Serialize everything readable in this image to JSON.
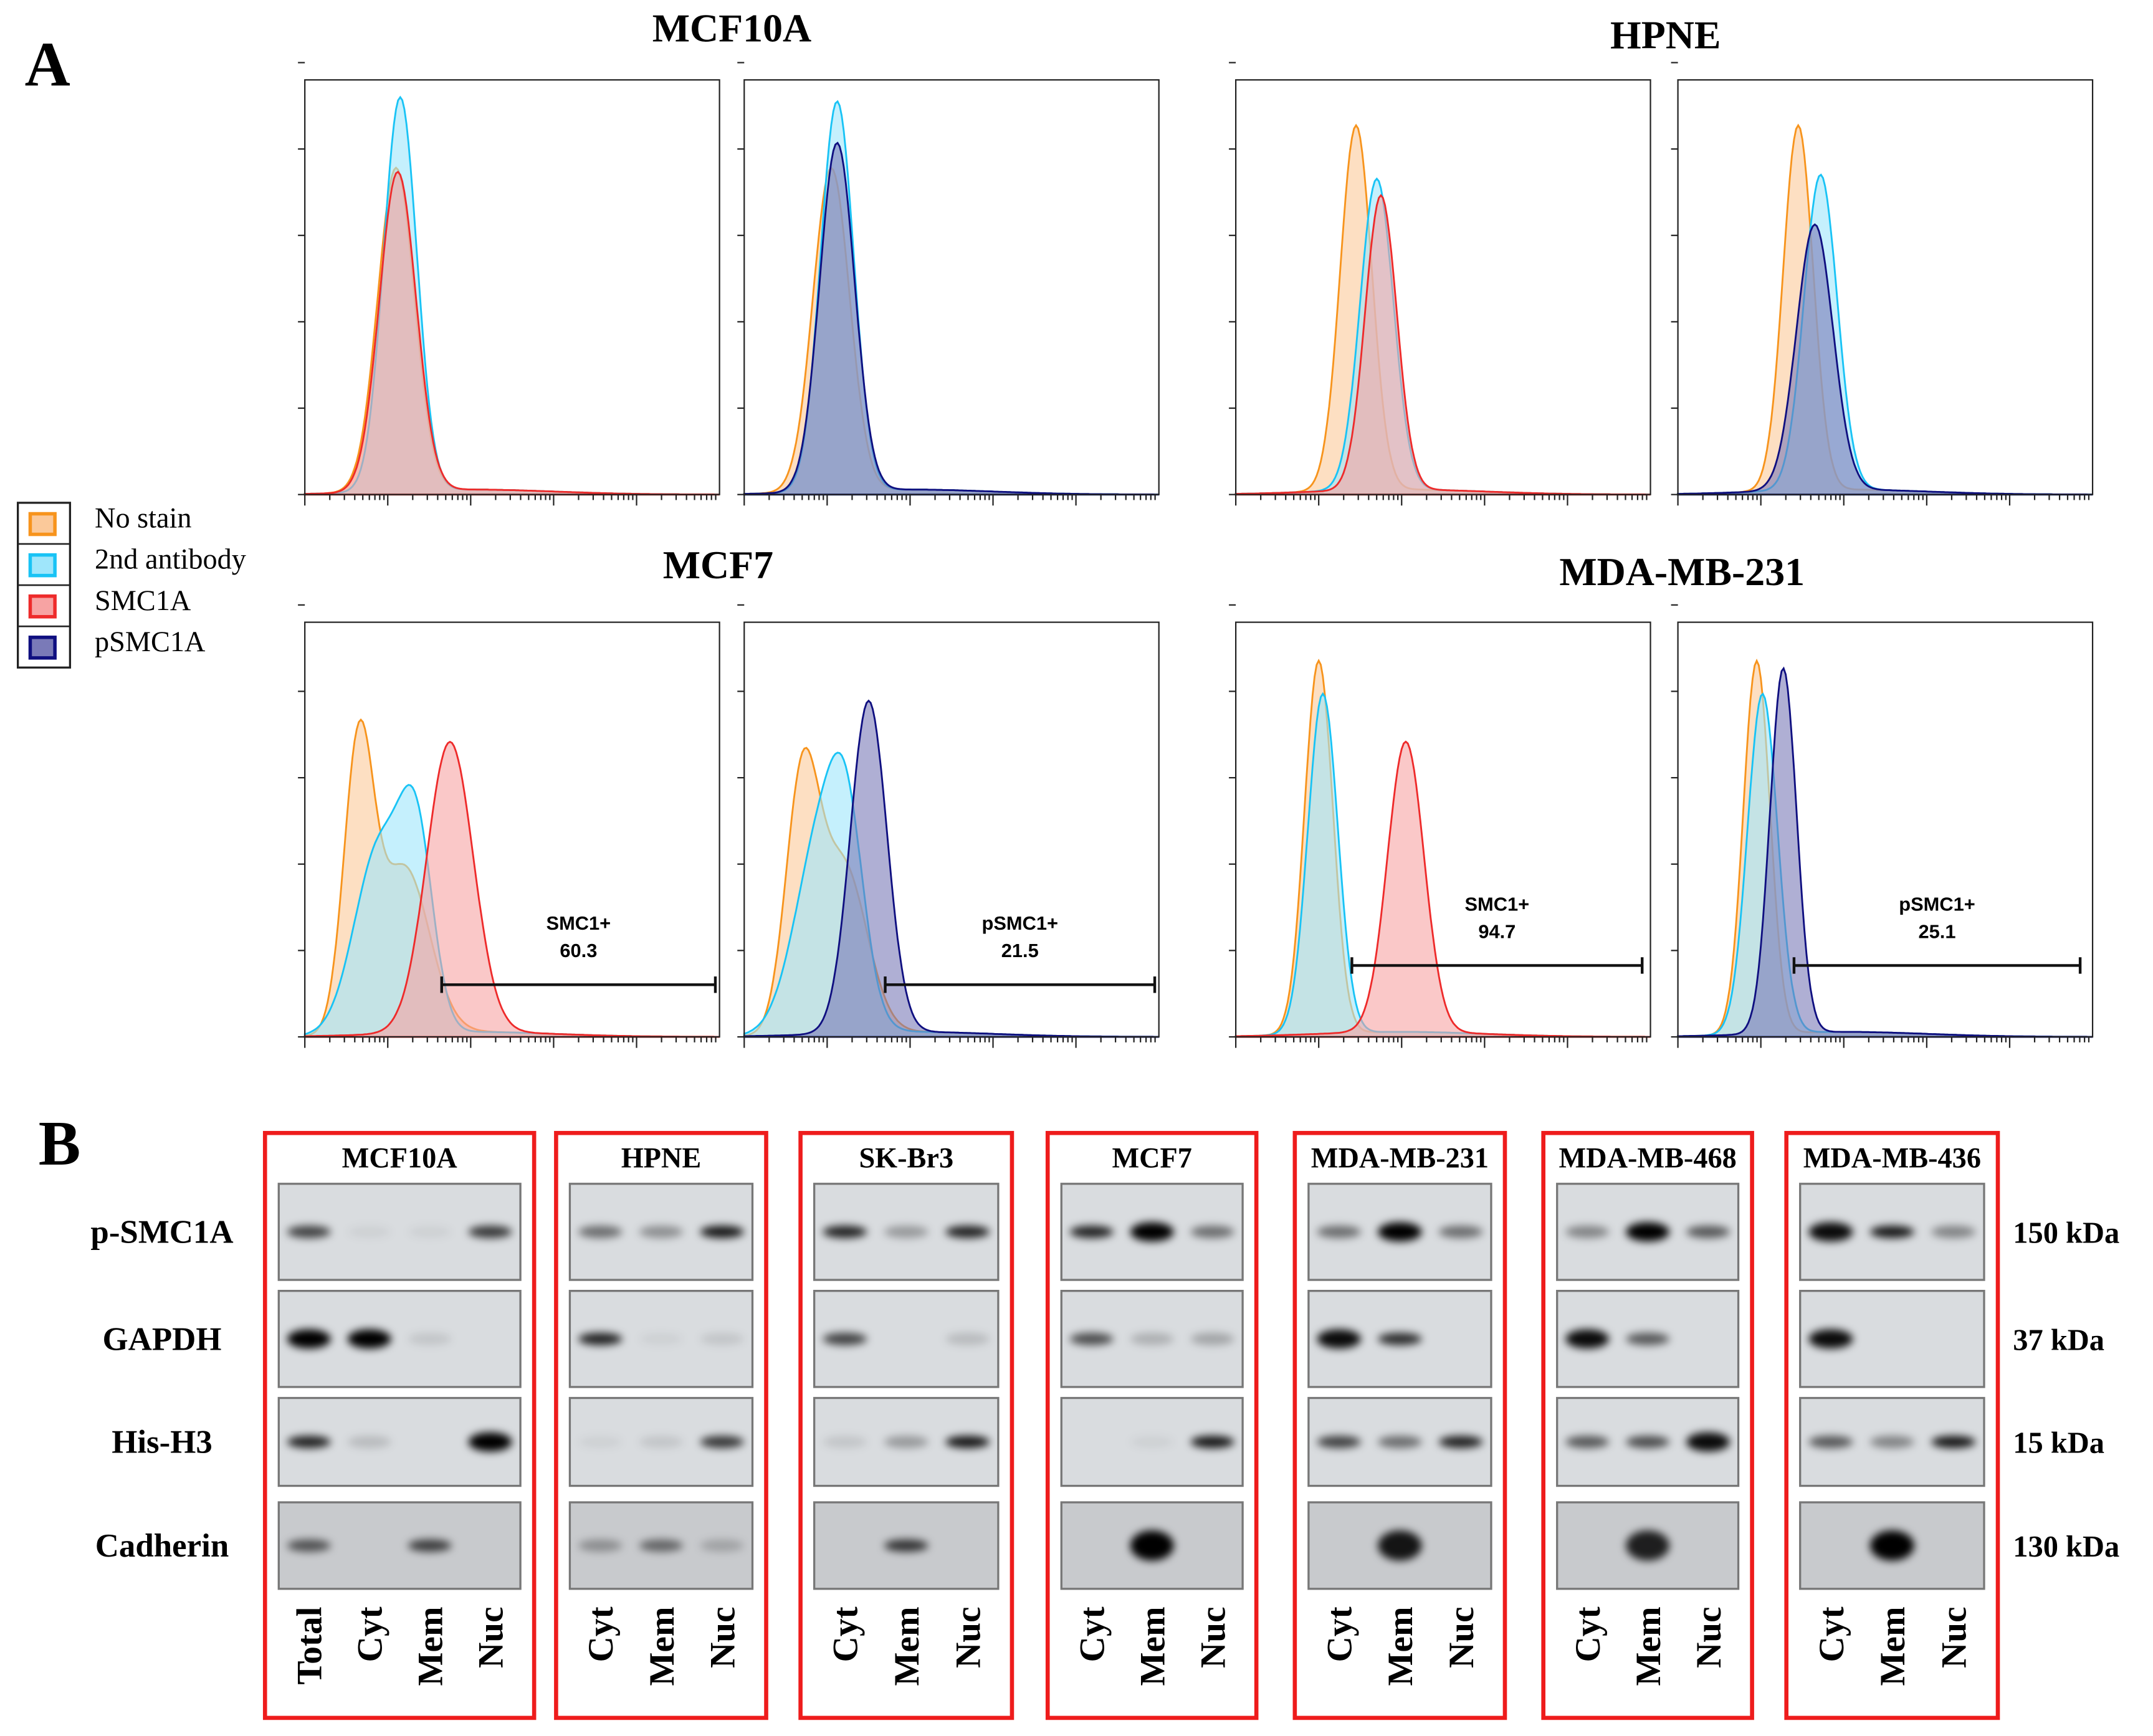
{
  "panel_labels": {
    "a": "A",
    "b": "B"
  },
  "legend": [
    {
      "label": "No stain",
      "stroke": "#f7941d",
      "fill": "#fbc99a"
    },
    {
      "label": "2nd antibody",
      "stroke": "#19c3f5",
      "fill": "#9fe6fb"
    },
    {
      "label": "SMC1A",
      "stroke": "#ee2b2b",
      "fill": "#f7a3a3"
    },
    {
      "label": "pSMC1A",
      "stroke": "#0f0f80",
      "fill": "#7a7ab8"
    }
  ],
  "chart_data": [
    {
      "type": "area",
      "title": "MCF10A",
      "marker": "SMC1A",
      "xlabel": "",
      "ylabel": "",
      "xlim": [
        0,
        5
      ],
      "ylim": [
        0,
        100
      ],
      "series": [
        {
          "name": "No stain",
          "peaks": [
            [
              1.1,
              78,
              0.22
            ]
          ]
        },
        {
          "name": "2nd antibody",
          "peaks": [
            [
              1.15,
              95,
              0.2
            ]
          ]
        },
        {
          "name": "SMC1A",
          "peaks": [
            [
              1.12,
              77,
              0.22
            ]
          ]
        }
      ]
    },
    {
      "type": "area",
      "title": "MCF10A",
      "marker": "pSMC1A",
      "xlim": [
        0,
        5
      ],
      "ylim": [
        0,
        100
      ],
      "series": [
        {
          "name": "No stain",
          "peaks": [
            [
              1.05,
              78,
              0.22
            ]
          ]
        },
        {
          "name": "2nd antibody",
          "peaks": [
            [
              1.12,
              94,
              0.2
            ]
          ]
        },
        {
          "name": "pSMC1A",
          "peaks": [
            [
              1.12,
              84,
              0.21
            ]
          ]
        }
      ]
    },
    {
      "type": "area",
      "title": "HPNE",
      "marker": "SMC1A",
      "xlim": [
        0,
        5
      ],
      "ylim": [
        0,
        100
      ],
      "series": [
        {
          "name": "No stain",
          "peaks": [
            [
              1.45,
              88,
              0.19
            ]
          ]
        },
        {
          "name": "2nd antibody",
          "peaks": [
            [
              1.7,
              75,
              0.2
            ]
          ]
        },
        {
          "name": "SMC1A",
          "peaks": [
            [
              1.75,
              71,
              0.19
            ]
          ]
        }
      ]
    },
    {
      "type": "area",
      "title": "HPNE",
      "marker": "pSMC1A",
      "xlim": [
        0,
        5
      ],
      "ylim": [
        0,
        100
      ],
      "series": [
        {
          "name": "No stain",
          "peaks": [
            [
              1.45,
              88,
              0.18
            ]
          ]
        },
        {
          "name": "2nd antibody",
          "peaks": [
            [
              1.72,
              76,
              0.2
            ]
          ]
        },
        {
          "name": "pSMC1A",
          "peaks": [
            [
              1.65,
              64,
              0.22
            ]
          ]
        }
      ]
    },
    {
      "type": "area",
      "title": "MCF7",
      "marker": "SMC1A",
      "xlim": [
        0,
        5
      ],
      "ylim": [
        0,
        100
      ],
      "gate": {
        "label": "SMC1+",
        "value": "60.3",
        "range": [
          1.65,
          4.95
        ]
      },
      "series": [
        {
          "name": "No stain",
          "peaks": [
            [
              0.65,
              68,
              0.18
            ],
            [
              1.2,
              40,
              0.3
            ]
          ]
        },
        {
          "name": "2nd antibody",
          "peaks": [
            [
              0.9,
              45,
              0.3
            ],
            [
              1.35,
              42,
              0.2
            ]
          ]
        },
        {
          "name": "SMC1A",
          "peaks": [
            [
              1.75,
              70,
              0.28
            ]
          ]
        }
      ]
    },
    {
      "type": "area",
      "title": "MCF7",
      "marker": "pSMC1A",
      "xlim": [
        0,
        5
      ],
      "ylim": [
        0,
        100
      ],
      "gate": {
        "label": "pSMC1+",
        "value": "21.5",
        "range": [
          1.7,
          4.95
        ]
      },
      "series": [
        {
          "name": "No stain",
          "peaks": [
            [
              0.7,
              60,
              0.2
            ],
            [
              1.2,
              40,
              0.28
            ]
          ]
        },
        {
          "name": "2nd antibody",
          "peaks": [
            [
              0.95,
              50,
              0.32
            ],
            [
              1.25,
              30,
              0.2
            ]
          ]
        },
        {
          "name": "pSMC1A",
          "peaks": [
            [
              1.5,
              80,
              0.22
            ]
          ]
        }
      ]
    },
    {
      "type": "area",
      "title": "MDA-MB-231",
      "marker": "SMC1A",
      "xlim": [
        0,
        5
      ],
      "ylim": [
        0,
        100
      ],
      "gate": {
        "label": "SMC1+",
        "value": "94.7",
        "range": [
          1.4,
          4.9
        ]
      },
      "series": [
        {
          "name": "No stain",
          "peaks": [
            [
              1.0,
              90,
              0.17
            ]
          ]
        },
        {
          "name": "2nd antibody",
          "peaks": [
            [
              1.05,
              82,
              0.18
            ]
          ]
        },
        {
          "name": "SMC1A",
          "peaks": [
            [
              2.05,
              70,
              0.22
            ]
          ]
        }
      ]
    },
    {
      "type": "area",
      "title": "MDA-MB-231",
      "marker": "pSMC1A",
      "xlim": [
        0,
        5
      ],
      "ylim": [
        0,
        100
      ],
      "gate": {
        "label": "pSMC1+",
        "value": "25.1",
        "range": [
          1.4,
          4.85
        ]
      },
      "series": [
        {
          "name": "No stain",
          "peaks": [
            [
              0.95,
              90,
              0.16
            ]
          ]
        },
        {
          "name": "2nd antibody",
          "peaks": [
            [
              1.02,
              82,
              0.18
            ]
          ]
        },
        {
          "name": "pSMC1A",
          "peaks": [
            [
              1.27,
              88,
              0.16
            ]
          ]
        }
      ]
    }
  ],
  "western": {
    "rows": [
      "p-SMC1A",
      "GAPDH",
      "His-H3",
      "Cadherin"
    ],
    "sizes": [
      "150 kDa",
      "37 kDa",
      "15 kDa",
      "130 kDa"
    ],
    "blots": [
      {
        "title": "MCF10A",
        "lanes": [
          "Total",
          "Cyt",
          "Mem",
          "Nuc"
        ],
        "bands": [
          [
            0.7,
            0.05,
            0.05,
            0.75
          ],
          [
            1,
            1,
            0.1,
            0
          ],
          [
            0.85,
            0.15,
            0,
            1
          ],
          [
            0.6,
            0,
            0.7,
            0
          ]
        ]
      },
      {
        "title": "HPNE",
        "lanes": [
          "Cyt",
          "Mem",
          "Nuc"
        ],
        "bands": [
          [
            0.5,
            0.35,
            0.9
          ],
          [
            0.85,
            0.05,
            0.1
          ],
          [
            0.05,
            0.1,
            0.75
          ],
          [
            0.3,
            0.5,
            0.2
          ]
        ]
      },
      {
        "title": "SK-Br3",
        "lanes": [
          "Cyt",
          "Mem",
          "Nuc"
        ],
        "bands": [
          [
            0.85,
            0.3,
            0.85
          ],
          [
            0.7,
            0,
            0.15
          ],
          [
            0.1,
            0.3,
            0.9
          ],
          [
            0,
            0.75,
            0
          ]
        ]
      },
      {
        "title": "MCF7",
        "lanes": [
          "Cyt",
          "Mem",
          "Nuc"
        ],
        "bands": [
          [
            0.85,
            1,
            0.5
          ],
          [
            0.65,
            0.2,
            0.25
          ],
          [
            0,
            0.05,
            0.9
          ],
          [
            0,
            1,
            0
          ]
        ]
      },
      {
        "title": "MDA-MB-231",
        "lanes": [
          "Cyt",
          "Mem",
          "Nuc"
        ],
        "bands": [
          [
            0.5,
            1,
            0.5
          ],
          [
            0.95,
            0.8,
            0
          ],
          [
            0.7,
            0.5,
            0.85
          ],
          [
            0,
            0.9,
            0
          ]
        ]
      },
      {
        "title": "MDA-MB-468",
        "lanes": [
          "Cyt",
          "Mem",
          "Nuc"
        ],
        "bands": [
          [
            0.4,
            1,
            0.6
          ],
          [
            0.95,
            0.6,
            0
          ],
          [
            0.6,
            0.65,
            0.95
          ],
          [
            0,
            0.85,
            0
          ]
        ]
      },
      {
        "title": "MDA-MB-436",
        "lanes": [
          "Cyt",
          "Mem",
          "Nuc"
        ],
        "bands": [
          [
            0.95,
            0.9,
            0.4
          ],
          [
            0.95,
            0,
            0
          ],
          [
            0.6,
            0.4,
            0.9
          ],
          [
            0,
            1,
            0
          ]
        ]
      }
    ]
  }
}
